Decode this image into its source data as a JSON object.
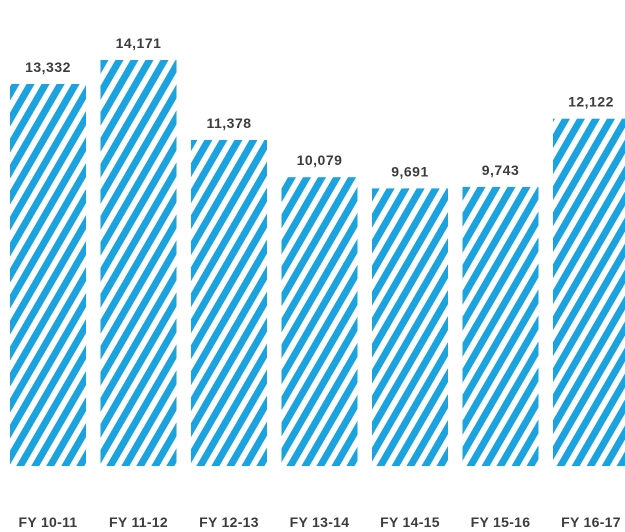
{
  "chart_data": {
    "type": "bar",
    "categories": [
      "FY 10-11",
      "FY 11-12",
      "FY 12-13",
      "FY 13-14",
      "FY 14-15",
      "FY 15-16",
      "FY 16-17"
    ],
    "values": [
      13332,
      14171,
      11378,
      10079,
      9691,
      9743,
      12122
    ],
    "value_labels": [
      "13,332",
      "14,171",
      "11,378",
      "10,079",
      "9,691",
      "9,743",
      "12,122"
    ],
    "title": "",
    "xlabel": "",
    "ylabel": "",
    "ylim": [
      0,
      15000
    ],
    "grid": false,
    "legend": "none",
    "bar_color": "#1ba3e0",
    "bar_pattern": "diagonal-stripes"
  }
}
